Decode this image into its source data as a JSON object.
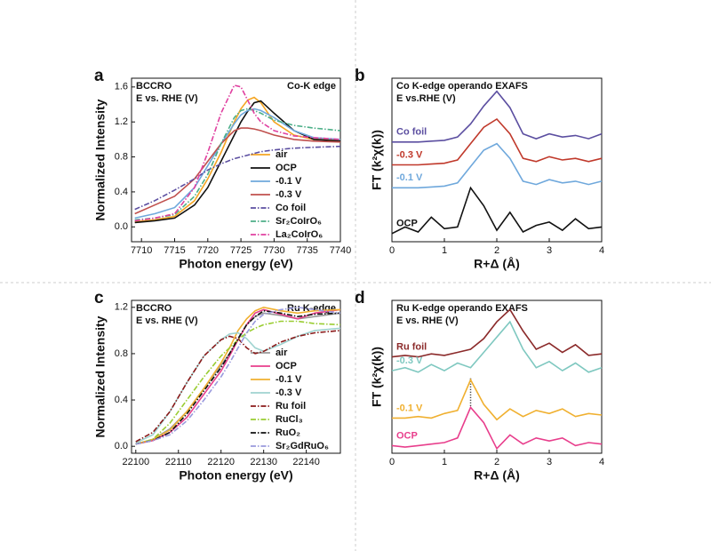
{
  "chart_data": [
    {
      "type": "line",
      "panel": "a",
      "title_lines": [
        "BCCRO",
        "E vs. RHE (V)"
      ],
      "corner_label": "Co-K edge",
      "xlabel": "Photon energy (eV)",
      "ylabel": "Normalized Intensity",
      "xlim": [
        7708.5,
        7740
      ],
      "xticks": [
        7710,
        7715,
        7720,
        7725,
        7730,
        7735,
        7740
      ],
      "ylim": [
        -0.17,
        1.7
      ],
      "yticks": [
        {
          "value": 0,
          "label": "0.0"
        },
        0.4,
        0.8,
        1.2,
        1.6
      ],
      "legend": "lower right",
      "x": [
        7709,
        7712,
        7715,
        7718,
        7720,
        7722,
        7724,
        7725,
        7726,
        7727,
        7728,
        7730,
        7733,
        7736,
        7740
      ],
      "series": [
        {
          "name": "air",
          "color": "#f5a623",
          "dash": "solid",
          "values": [
            0.06,
            0.08,
            0.12,
            0.3,
            0.55,
            0.85,
            1.2,
            1.35,
            1.45,
            1.48,
            1.42,
            1.2,
            1.05,
            1.0,
            1.0
          ]
        },
        {
          "name": "OCP",
          "color": "#111111",
          "dash": "solid",
          "values": [
            0.05,
            0.07,
            0.1,
            0.25,
            0.45,
            0.75,
            1.05,
            1.2,
            1.32,
            1.42,
            1.44,
            1.3,
            1.1,
            1.0,
            0.98
          ]
        },
        {
          "name": "-0.1 V",
          "color": "#6fa8dc",
          "dash": "solid",
          "values": [
            0.1,
            0.15,
            0.22,
            0.45,
            0.7,
            0.95,
            1.18,
            1.28,
            1.33,
            1.35,
            1.33,
            1.25,
            1.1,
            1.02,
            1.0
          ]
        },
        {
          "name": "-0.3 V",
          "color": "#c0504d",
          "dash": "solid",
          "values": [
            0.15,
            0.25,
            0.35,
            0.55,
            0.75,
            0.95,
            1.1,
            1.13,
            1.13,
            1.12,
            1.1,
            1.05,
            1.0,
            0.98,
            0.97
          ]
        },
        {
          "name": "Co foil",
          "color": "#5b4ea0",
          "dash": "dashdot",
          "values": [
            0.2,
            0.3,
            0.42,
            0.55,
            0.65,
            0.72,
            0.78,
            0.8,
            0.82,
            0.84,
            0.86,
            0.88,
            0.9,
            0.91,
            0.92
          ]
        },
        {
          "name": "Sr₂CoIrO₆",
          "color": "#4caf88",
          "dash": "dashdot",
          "values": [
            0.08,
            0.1,
            0.14,
            0.35,
            0.6,
            0.95,
            1.25,
            1.33,
            1.35,
            1.33,
            1.3,
            1.22,
            1.16,
            1.13,
            1.1
          ]
        },
        {
          "name": "La₂CoIrO₆",
          "color": "#e040a0",
          "dash": "dashdot",
          "values": [
            0.07,
            0.1,
            0.15,
            0.45,
            0.85,
            1.3,
            1.62,
            1.6,
            1.45,
            1.3,
            1.2,
            1.1,
            1.04,
            1.02,
            1.0
          ]
        }
      ]
    },
    {
      "type": "line",
      "panel": "b",
      "title_lines": [
        "Co K-edge operando EXAFS",
        "E vs.RHE (V)"
      ],
      "xlabel": "R+Δ (Å)",
      "ylabel": "FT (k²χ(k))",
      "xlim": [
        0,
        4
      ],
      "xticks": [
        0,
        1,
        2,
        3,
        4
      ],
      "ylim": [
        0,
        10
      ],
      "legend": "inline",
      "x": [
        0,
        0.25,
        0.5,
        0.75,
        1,
        1.25,
        1.5,
        1.75,
        2,
        2.25,
        2.5,
        2.75,
        3,
        3.25,
        3.5,
        3.75,
        4
      ],
      "series": [
        {
          "name": "Co foil",
          "color": "#5b4ea0",
          "dash": "solid",
          "values": [
            6.1,
            6.1,
            6.1,
            6.15,
            6.2,
            6.4,
            7.2,
            8.3,
            9.2,
            8.2,
            6.6,
            6.3,
            6.6,
            6.4,
            6.5,
            6.3,
            6.6
          ]
        },
        {
          "name": "-0.3 V",
          "color": "#c0392b",
          "dash": "solid",
          "values": [
            4.7,
            4.7,
            4.7,
            4.75,
            4.8,
            5.0,
            6.0,
            7.0,
            7.5,
            6.6,
            5.1,
            4.9,
            5.2,
            5.0,
            5.1,
            4.9,
            5.1
          ]
        },
        {
          "name": "-0.1 V",
          "color": "#6fa8dc",
          "dash": "solid",
          "values": [
            3.3,
            3.3,
            3.3,
            3.35,
            3.4,
            3.6,
            4.6,
            5.6,
            6.0,
            5.1,
            3.7,
            3.5,
            3.8,
            3.6,
            3.7,
            3.5,
            3.7
          ]
        },
        {
          "name": "OCP",
          "color": "#111111",
          "dash": "solid",
          "values": [
            0.5,
            0.9,
            0.6,
            1.5,
            0.8,
            0.9,
            3.3,
            2.2,
            0.7,
            1.8,
            0.6,
            1.0,
            1.2,
            0.7,
            1.4,
            0.8,
            0.9
          ]
        }
      ]
    },
    {
      "type": "line",
      "panel": "c",
      "title_lines": [
        "BCCRO",
        "E vs. RHE (V)"
      ],
      "corner_label": "Ru K-edge",
      "xlabel": "Photon energy (eV)",
      "ylabel": "Normalized Intensity",
      "xlim": [
        22099,
        22148
      ],
      "xticks": [
        22100,
        22110,
        22120,
        22130,
        22140
      ],
      "ylim": [
        -0.06,
        1.26
      ],
      "yticks": [
        {
          "value": 0,
          "label": "0.0"
        },
        0.4,
        0.8,
        1.2
      ],
      "legend": "lower right",
      "x": [
        22100,
        22104,
        22108,
        22112,
        22116,
        22120,
        22122,
        22124,
        22126,
        22128,
        22130,
        22134,
        22138,
        22142,
        22148
      ],
      "series": [
        {
          "name": "air",
          "color": "#999999",
          "dash": "solid",
          "values": [
            0.02,
            0.06,
            0.15,
            0.3,
            0.5,
            0.7,
            0.8,
            0.92,
            1.05,
            1.12,
            1.15,
            1.13,
            1.1,
            1.12,
            1.15
          ]
        },
        {
          "name": "OCP",
          "color": "#e83e8c",
          "dash": "solid",
          "values": [
            0.02,
            0.05,
            0.12,
            0.25,
            0.45,
            0.65,
            0.78,
            0.92,
            1.05,
            1.15,
            1.18,
            1.14,
            1.1,
            1.15,
            1.18
          ]
        },
        {
          "name": "-0.1 V",
          "color": "#f0b030",
          "dash": "solid",
          "values": [
            0.02,
            0.06,
            0.14,
            0.3,
            0.5,
            0.72,
            0.85,
            1.0,
            1.1,
            1.17,
            1.2,
            1.17,
            1.15,
            1.17,
            1.18
          ]
        },
        {
          "name": "-0.3 V",
          "color": "#9fd3d0",
          "dash": "solid",
          "values": [
            0.03,
            0.1,
            0.3,
            0.55,
            0.78,
            0.92,
            0.97,
            0.98,
            0.93,
            0.85,
            0.82,
            0.88,
            0.95,
            1.0,
            1.02
          ]
        },
        {
          "name": "Ru foil",
          "color": "#8b1a1a",
          "dash": "dashdot",
          "values": [
            0.04,
            0.12,
            0.3,
            0.55,
            0.78,
            0.92,
            0.95,
            0.93,
            0.85,
            0.8,
            0.82,
            0.9,
            0.95,
            0.98,
            1.0
          ]
        },
        {
          "name": "RuCl₃",
          "color": "#9acd32",
          "dash": "dashdot",
          "values": [
            0.02,
            0.06,
            0.2,
            0.4,
            0.6,
            0.78,
            0.85,
            0.92,
            0.98,
            1.02,
            1.05,
            1.08,
            1.08,
            1.06,
            1.05
          ]
        },
        {
          "name": "RuO₂",
          "color": "#111111",
          "dash": "dashdot",
          "values": [
            0.02,
            0.05,
            0.12,
            0.28,
            0.48,
            0.68,
            0.8,
            0.93,
            1.05,
            1.12,
            1.17,
            1.15,
            1.12,
            1.14,
            1.15
          ]
        },
        {
          "name": "Sr₂GdRuO₆",
          "color": "#9999dd",
          "dash": "dashdot",
          "values": [
            0.02,
            0.05,
            0.1,
            0.22,
            0.4,
            0.6,
            0.72,
            0.85,
            0.98,
            1.08,
            1.14,
            1.18,
            1.2,
            1.18,
            1.15
          ]
        }
      ]
    },
    {
      "type": "line",
      "panel": "d",
      "title_lines": [
        "Ru K-edge operando EXAFS",
        "E vs. RHE (V)"
      ],
      "xlabel": "R+Δ (Å)",
      "ylabel": "FT (k²χ(k))",
      "xlim": [
        0,
        4
      ],
      "xticks": [
        0,
        1,
        2,
        3,
        4
      ],
      "ylim": [
        0,
        10
      ],
      "legend": "inline",
      "x": [
        0,
        0.25,
        0.5,
        0.75,
        1,
        1.25,
        1.5,
        1.75,
        2,
        2.25,
        2.5,
        2.75,
        3,
        3.25,
        3.5,
        3.75,
        4
      ],
      "series": [
        {
          "name": "Ru foil",
          "color": "#8b2a2a",
          "dash": "solid",
          "values": [
            6.3,
            6.4,
            6.3,
            6.5,
            6.4,
            6.6,
            6.8,
            7.5,
            8.6,
            9.4,
            8.0,
            6.8,
            7.2,
            6.6,
            7.1,
            6.4,
            6.5
          ]
        },
        {
          "name": "-0.3 V",
          "color": "#7fc8c0",
          "dash": "solid",
          "values": [
            5.4,
            5.6,
            5.3,
            5.8,
            5.4,
            5.9,
            5.6,
            6.6,
            7.6,
            8.6,
            6.8,
            5.6,
            6.0,
            5.4,
            5.9,
            5.3,
            5.6
          ]
        },
        {
          "name": "-0.1 V",
          "color": "#f0b030",
          "dash": "solid",
          "values": [
            2.3,
            2.3,
            2.4,
            2.3,
            2.6,
            2.8,
            4.8,
            3.2,
            2.2,
            2.9,
            2.4,
            2.8,
            2.6,
            2.9,
            2.4,
            2.6,
            2.5
          ]
        },
        {
          "name": "OCP",
          "color": "#e83e8c",
          "dash": "solid",
          "values": [
            0.5,
            0.4,
            0.5,
            0.6,
            0.7,
            1.0,
            3.0,
            2.0,
            0.3,
            1.2,
            0.6,
            1.0,
            0.8,
            1.0,
            0.5,
            0.7,
            0.6
          ]
        }
      ]
    }
  ]
}
